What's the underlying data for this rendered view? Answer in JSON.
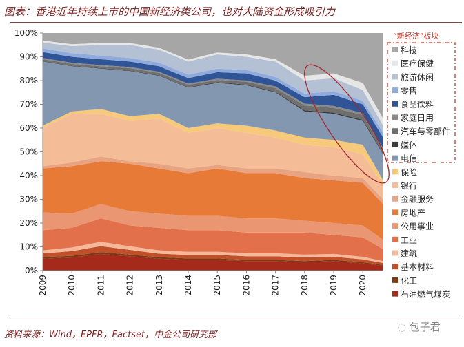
{
  "title": "图表：香港近年持续上市的中国新经济类公司，也对大陆资金形成吸引力",
  "source": "资料来源：Wind，EPFR，Factset，中金公司研究部",
  "watermark": "包子君",
  "chart_data": {
    "type": "area",
    "stacked": true,
    "ylim": [
      0,
      100
    ],
    "y_ticks": [
      "0%",
      "10%",
      "20%",
      "30%",
      "40%",
      "50%",
      "60%",
      "70%",
      "80%",
      "90%",
      "100%"
    ],
    "x_ticks": [
      "2009",
      "2010",
      "2011",
      "2012",
      "2013",
      "2014",
      "2015",
      "2016",
      "2017",
      "2018",
      "2019",
      "2020"
    ],
    "x": [
      2009,
      2010,
      2011,
      2012,
      2013,
      2014,
      2015,
      2016,
      2017,
      2018,
      2019,
      2020,
      2020.7
    ],
    "legend_title": "“新经济”板块",
    "legend_placement": "right",
    "series": [
      {
        "name": "石油燃气煤炭",
        "color": "#a52a1c",
        "values": [
          5,
          5.5,
          7,
          6,
          5,
          4.5,
          4.5,
          4,
          4,
          3.5,
          4,
          3,
          2
        ]
      },
      {
        "name": "化工",
        "color": "#7a3a12",
        "values": [
          0.7,
          0.7,
          0.8,
          0.7,
          0.6,
          0.6,
          0.6,
          0.5,
          0.5,
          0.5,
          0.5,
          0.5,
          0.4
        ]
      },
      {
        "name": "基本材料",
        "color": "#c0502a",
        "values": [
          1.5,
          2,
          2.5,
          2,
          1.5,
          1.5,
          1.5,
          1.5,
          1.5,
          1.5,
          1.3,
          1.2,
          0.8
        ]
      },
      {
        "name": "建筑",
        "color": "#f5b89a",
        "values": [
          1.3,
          1.5,
          1.8,
          1.5,
          1.4,
          1.3,
          1.3,
          1.3,
          1.3,
          1.2,
          1.2,
          1.1,
          0.8
        ]
      },
      {
        "name": "工业",
        "color": "#e2704a",
        "values": [
          8.5,
          8.3,
          9.9,
          8.8,
          9.5,
          9.1,
          9.1,
          8.7,
          8.7,
          9.3,
          8,
          8.2,
          5
        ]
      },
      {
        "name": "公用事业",
        "color": "#ea9672",
        "values": [
          7.5,
          6,
          6,
          6,
          6,
          6,
          6,
          6,
          6,
          5,
          5,
          5,
          4
        ]
      },
      {
        "name": "房地产",
        "color": "#e87a38",
        "values": [
          18.5,
          20,
          18,
          20,
          19,
          18,
          20,
          19,
          19,
          18,
          18,
          18,
          15
        ]
      },
      {
        "name": "金融服务",
        "color": "#e8a482",
        "values": [
          1,
          1.5,
          2,
          1,
          2,
          2,
          1.5,
          2,
          2,
          2.5,
          2,
          2,
          2
        ]
      },
      {
        "name": "银行",
        "color": "#f4bd98",
        "values": [
          16,
          20.5,
          18,
          17,
          19,
          15,
          15.5,
          15,
          13,
          11.5,
          12,
          10,
          6
        ]
      },
      {
        "name": "保险",
        "color": "#f7c97a",
        "values": [
          1,
          1,
          2,
          2,
          2,
          2,
          2,
          3,
          3,
          3,
          3,
          4,
          2
        ]
      },
      {
        "name": "电信",
        "color": "#8497b0",
        "values": [
          27,
          19,
          17,
          19,
          16,
          17,
          17,
          17,
          16,
          11,
          11,
          10,
          11
        ]
      },
      {
        "name": "媒体",
        "color": "#3a3a3a",
        "values": [
          0.2,
          0.2,
          0.2,
          0.2,
          0.2,
          0.2,
          0.3,
          0.3,
          0.3,
          0.5,
          0.5,
          0.5,
          0.5
        ]
      },
      {
        "name": "汽车与零部件",
        "color": "#6f6f6f",
        "values": [
          0.8,
          0.8,
          0.8,
          1,
          1,
          1,
          1,
          1.2,
          1.5,
          2,
          2,
          2,
          1.5
        ]
      },
      {
        "name": "家庭日用",
        "color": "#8a8a8a",
        "values": [
          0.5,
          0.5,
          0.5,
          0.5,
          0.5,
          0.5,
          0.5,
          0.5,
          0.7,
          0.8,
          0.8,
          0.8,
          0.5
        ]
      },
      {
        "name": "食品饮料",
        "color": "#2f5597",
        "values": [
          2.5,
          2.5,
          2.5,
          2.3,
          2.3,
          2.3,
          2.7,
          3,
          2.5,
          2.7,
          4.7,
          3.7,
          4.5
        ]
      },
      {
        "name": "零售",
        "color": "#8faadc",
        "values": [
          1.5,
          1.5,
          1.5,
          1.5,
          1.5,
          1.5,
          1.5,
          1.5,
          1.5,
          1.5,
          1.5,
          1.5,
          2
        ]
      },
      {
        "name": "旅游休闲",
        "color": "#b4c0d4",
        "values": [
          2.5,
          3,
          4.5,
          5.5,
          5.5,
          5.5,
          6,
          5.5,
          6.5,
          5.5,
          5.5,
          4.5,
          3
        ]
      },
      {
        "name": "医疗保健",
        "color": "#e6e6e6",
        "values": [
          0.8,
          0.8,
          0.8,
          0.8,
          0.8,
          0.8,
          0.8,
          1,
          1,
          2,
          2,
          3,
          3
        ]
      },
      {
        "name": "科技",
        "color": "#a6a6a6",
        "values": [
          3.2,
          4.7,
          4.2,
          4.2,
          6.2,
          11.2,
          8.2,
          9,
          11,
          18,
          17,
          21,
          36
        ]
      }
    ],
    "highlight": {
      "shape": "ellipse",
      "color": "#a0282d"
    }
  }
}
